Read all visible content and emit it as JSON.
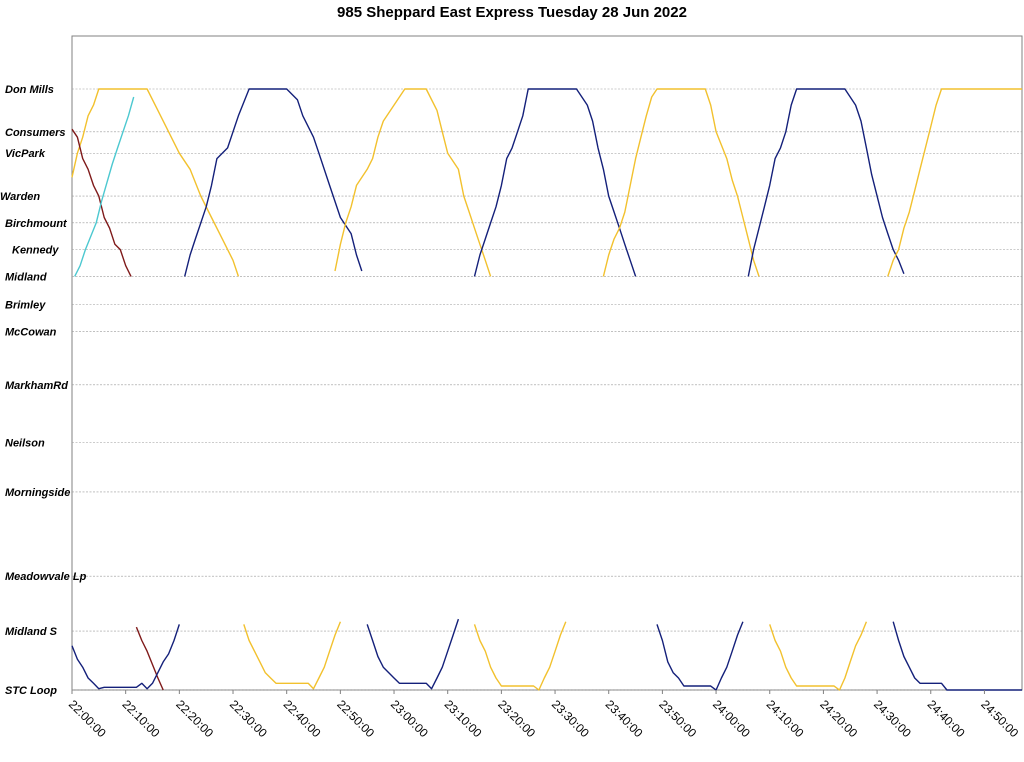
{
  "chart_data": {
    "type": "line",
    "title": "985 Sheppard East Express Tuesday 28 Jun 2022",
    "xlabel": "",
    "ylabel": "",
    "x_range": [
      "22:00:00",
      "24:57:00"
    ],
    "x_ticks": [
      "22:00:00",
      "22:10:00",
      "22:20:00",
      "22:30:00",
      "22:40:00",
      "22:50:00",
      "23:00:00",
      "23:10:00",
      "23:20:00",
      "23:30:00",
      "23:40:00",
      "23:50:00",
      "24:00:00",
      "24:10:00",
      "24:20:00",
      "24:30:00",
      "24:40:00",
      "24:50:00"
    ],
    "stops": [
      {
        "name": "Don Mills",
        "km": 0
      },
      {
        "name": "Consumers",
        "km": 1.6
      },
      {
        "name": "VicPark",
        "km": 2.4
      },
      {
        "name": "Warden",
        "km": 4.0
      },
      {
        "name": "Birchmount",
        "km": 5.0
      },
      {
        "name": "Kennedy",
        "km": 6.0
      },
      {
        "name": "Midland",
        "km": 7.0
      },
      {
        "name": "Brimley",
        "km": 8.05
      },
      {
        "name": "McCowan",
        "km": 9.05
      },
      {
        "name": "MarkhamRd",
        "km": 11.05
      },
      {
        "name": "Neilson",
        "km": 13.2
      },
      {
        "name": "Morningside",
        "km": 15.05
      },
      {
        "name": "Meadowvale Lp",
        "km": 18.2
      },
      {
        "name": "Midland S",
        "km": 20.25
      },
      {
        "name": "STC Loop",
        "km": 22.45
      }
    ],
    "grid": "horizontal dotted at each stop",
    "legend": "none",
    "series_colors": {
      "navy": "#14207a",
      "gold": "#f2c12e",
      "maroon": "#7f1a1a",
      "cyan": "#4cc8d0"
    },
    "series": [
      {
        "color": "#f2c12e",
        "points": [
          [
            "22:00:00",
            3.3
          ],
          [
            "22:01:00",
            2.4
          ],
          [
            "22:02:00",
            1.8
          ],
          [
            "22:03:00",
            1.0
          ],
          [
            "22:04:00",
            0.6
          ],
          [
            "22:05:00",
            0.0
          ],
          [
            "22:14:00",
            0.0
          ],
          [
            "22:16:00",
            0.8
          ],
          [
            "22:18:00",
            1.6
          ],
          [
            "22:20:00",
            2.4
          ],
          [
            "22:22:00",
            3.0
          ],
          [
            "22:24:00",
            4.0
          ],
          [
            "22:26:00",
            4.8
          ],
          [
            "22:28:00",
            5.6
          ],
          [
            "22:30:00",
            6.4
          ],
          [
            "22:31:00",
            7.0
          ]
        ]
      },
      {
        "color": "#7f1a1a",
        "points": [
          [
            "22:00:00",
            1.5
          ],
          [
            "22:01:00",
            1.8
          ],
          [
            "22:02:00",
            2.6
          ],
          [
            "22:03:00",
            3.0
          ],
          [
            "22:04:00",
            3.6
          ],
          [
            "22:05:00",
            4.0
          ],
          [
            "22:06:00",
            4.8
          ],
          [
            "22:07:00",
            5.2
          ],
          [
            "22:08:00",
            5.8
          ],
          [
            "22:09:00",
            6.0
          ],
          [
            "22:10:00",
            6.6
          ],
          [
            "22:11:00",
            7.0
          ]
        ]
      },
      {
        "color": "#4cc8d0",
        "points": [
          [
            "22:00:30",
            7.0
          ],
          [
            "22:01:30",
            6.6
          ],
          [
            "22:02:30",
            6.0
          ],
          [
            "22:03:30",
            5.5
          ],
          [
            "22:04:30",
            5.0
          ],
          [
            "22:05:30",
            4.2
          ],
          [
            "22:06:30",
            3.5
          ],
          [
            "22:07:30",
            2.8
          ],
          [
            "22:08:30",
            2.2
          ],
          [
            "22:09:30",
            1.6
          ],
          [
            "22:10:30",
            1.0
          ],
          [
            "22:11:30",
            0.3
          ]
        ]
      },
      {
        "color": "#7f1a1a",
        "points": [
          [
            "22:12:00",
            20.1
          ],
          [
            "22:13:00",
            20.6
          ],
          [
            "22:14:00",
            21.0
          ],
          [
            "22:15:00",
            21.5
          ],
          [
            "22:16:00",
            22.0
          ],
          [
            "22:17:00",
            22.45
          ]
        ]
      },
      {
        "color": "#14207a",
        "points": [
          [
            "22:00:00",
            20.8
          ],
          [
            "22:01:00",
            21.3
          ],
          [
            "22:02:00",
            21.6
          ],
          [
            "22:03:00",
            22.0
          ],
          [
            "22:04:00",
            22.2
          ],
          [
            "22:05:00",
            22.4
          ],
          [
            "22:06:00",
            22.35
          ],
          [
            "22:10:00",
            22.35
          ],
          [
            "22:12:00",
            22.35
          ],
          [
            "22:13:00",
            22.2
          ],
          [
            "22:14:00",
            22.4
          ],
          [
            "22:15:00",
            22.2
          ],
          [
            "22:16:00",
            21.8
          ],
          [
            "22:17:00",
            21.4
          ],
          [
            "22:18:00",
            21.1
          ],
          [
            "22:19:00",
            20.6
          ],
          [
            "22:20:00",
            20.0
          ]
        ]
      },
      {
        "color": "#14207a",
        "points": [
          [
            "22:21:00",
            7.0
          ],
          [
            "22:22:00",
            6.2
          ],
          [
            "22:23:00",
            5.6
          ],
          [
            "22:24:00",
            5.0
          ],
          [
            "22:25:00",
            4.4
          ],
          [
            "22:26:00",
            3.6
          ],
          [
            "22:27:00",
            2.6
          ],
          [
            "22:29:00",
            2.2
          ],
          [
            "22:30:00",
            1.6
          ],
          [
            "22:31:00",
            1.0
          ],
          [
            "22:33:00",
            0.0
          ],
          [
            "22:40:00",
            0.0
          ],
          [
            "22:42:00",
            0.4
          ],
          [
            "22:43:00",
            1.0
          ],
          [
            "22:45:00",
            1.8
          ],
          [
            "22:46:00",
            2.4
          ],
          [
            "22:48:00",
            3.6
          ],
          [
            "22:50:00",
            4.8
          ],
          [
            "22:52:00",
            5.4
          ],
          [
            "22:53:00",
            6.2
          ],
          [
            "22:54:00",
            6.8
          ]
        ]
      },
      {
        "color": "#f2c12e",
        "points": [
          [
            "22:32:00",
            20.0
          ],
          [
            "22:33:00",
            20.6
          ],
          [
            "22:35:00",
            21.4
          ],
          [
            "22:36:00",
            21.8
          ],
          [
            "22:37:00",
            22.0
          ],
          [
            "22:38:00",
            22.2
          ],
          [
            "22:44:00",
            22.2
          ],
          [
            "22:45:00",
            22.4
          ],
          [
            "22:46:00",
            22.0
          ],
          [
            "22:47:00",
            21.6
          ],
          [
            "22:48:00",
            21.0
          ],
          [
            "22:49:00",
            20.4
          ],
          [
            "22:50:00",
            19.9
          ]
        ]
      },
      {
        "color": "#f2c12e",
        "points": [
          [
            "22:49:00",
            6.8
          ],
          [
            "22:50:00",
            5.8
          ],
          [
            "22:51:00",
            5.0
          ],
          [
            "22:52:00",
            4.4
          ],
          [
            "22:53:00",
            3.6
          ],
          [
            "22:55:00",
            3.0
          ],
          [
            "22:56:00",
            2.6
          ],
          [
            "22:57:00",
            1.8
          ],
          [
            "22:58:00",
            1.2
          ],
          [
            "23:00:00",
            0.6
          ],
          [
            "23:02:00",
            0.0
          ],
          [
            "23:06:00",
            0.0
          ],
          [
            "23:08:00",
            0.8
          ],
          [
            "23:09:00",
            1.6
          ],
          [
            "23:10:00",
            2.4
          ],
          [
            "23:12:00",
            3.0
          ],
          [
            "23:13:00",
            4.0
          ],
          [
            "23:14:00",
            4.6
          ],
          [
            "23:15:00",
            5.2
          ],
          [
            "23:16:00",
            5.8
          ],
          [
            "23:17:00",
            6.4
          ],
          [
            "23:18:00",
            7.0
          ]
        ]
      },
      {
        "color": "#14207a",
        "points": [
          [
            "22:55:00",
            20.0
          ],
          [
            "22:56:00",
            20.6
          ],
          [
            "22:57:00",
            21.2
          ],
          [
            "22:58:00",
            21.6
          ],
          [
            "23:00:00",
            22.0
          ],
          [
            "23:01:00",
            22.2
          ],
          [
            "23:06:00",
            22.2
          ],
          [
            "23:07:00",
            22.4
          ],
          [
            "23:08:00",
            22.0
          ],
          [
            "23:09:00",
            21.6
          ],
          [
            "23:10:00",
            21.0
          ],
          [
            "23:11:00",
            20.4
          ],
          [
            "23:12:00",
            19.8
          ]
        ]
      },
      {
        "color": "#14207a",
        "points": [
          [
            "23:15:00",
            7.0
          ],
          [
            "23:16:00",
            6.2
          ],
          [
            "23:17:00",
            5.6
          ],
          [
            "23:18:00",
            5.0
          ],
          [
            "23:19:00",
            4.4
          ],
          [
            "23:20:00",
            3.6
          ],
          [
            "23:21:00",
            2.6
          ],
          [
            "23:22:00",
            2.2
          ],
          [
            "23:23:00",
            1.6
          ],
          [
            "23:24:00",
            1.0
          ],
          [
            "23:25:00",
            0.0
          ],
          [
            "23:34:00",
            0.0
          ],
          [
            "23:36:00",
            0.6
          ],
          [
            "23:37:00",
            1.2
          ],
          [
            "23:38:00",
            2.2
          ],
          [
            "23:39:00",
            3.0
          ],
          [
            "23:40:00",
            4.0
          ],
          [
            "23:41:00",
            4.6
          ],
          [
            "23:42:00",
            5.2
          ],
          [
            "23:43:00",
            5.8
          ],
          [
            "23:44:00",
            6.4
          ],
          [
            "23:45:00",
            7.0
          ]
        ]
      },
      {
        "color": "#f2c12e",
        "points": [
          [
            "23:15:00",
            20.0
          ],
          [
            "23:16:00",
            20.6
          ],
          [
            "23:17:00",
            21.0
          ],
          [
            "23:18:00",
            21.6
          ],
          [
            "23:19:00",
            22.0
          ],
          [
            "23:20:00",
            22.3
          ],
          [
            "23:26:00",
            22.3
          ],
          [
            "23:27:00",
            22.45
          ],
          [
            "23:28:00",
            22.0
          ],
          [
            "23:29:00",
            21.6
          ],
          [
            "23:30:00",
            21.0
          ],
          [
            "23:31:00",
            20.4
          ],
          [
            "23:32:00",
            19.9
          ]
        ]
      },
      {
        "color": "#f2c12e",
        "points": [
          [
            "23:39:00",
            7.0
          ],
          [
            "23:40:00",
            6.2
          ],
          [
            "23:41:00",
            5.6
          ],
          [
            "23:42:00",
            5.2
          ],
          [
            "23:43:00",
            4.6
          ],
          [
            "23:44:00",
            3.6
          ],
          [
            "23:45:00",
            2.6
          ],
          [
            "23:46:00",
            1.8
          ],
          [
            "23:47:00",
            1.0
          ],
          [
            "23:48:00",
            0.3
          ],
          [
            "23:49:00",
            0.0
          ],
          [
            "23:58:00",
            0.0
          ],
          [
            "23:59:00",
            0.6
          ],
          [
            "24:00:00",
            1.6
          ],
          [
            "24:02:00",
            2.6
          ],
          [
            "24:03:00",
            3.4
          ],
          [
            "24:04:00",
            4.0
          ],
          [
            "24:05:00",
            4.8
          ],
          [
            "24:06:00",
            5.6
          ],
          [
            "24:07:00",
            6.4
          ],
          [
            "24:08:00",
            7.0
          ]
        ]
      },
      {
        "color": "#14207a",
        "points": [
          [
            "23:49:00",
            20.0
          ],
          [
            "23:50:00",
            20.6
          ],
          [
            "23:51:00",
            21.4
          ],
          [
            "23:52:00",
            21.8
          ],
          [
            "23:53:00",
            22.0
          ],
          [
            "23:54:00",
            22.3
          ],
          [
            "23:59:00",
            22.3
          ],
          [
            "24:00:00",
            22.45
          ],
          [
            "24:01:00",
            22.0
          ],
          [
            "24:02:00",
            21.6
          ],
          [
            "24:03:00",
            21.0
          ],
          [
            "24:04:00",
            20.4
          ],
          [
            "24:05:00",
            19.9
          ]
        ]
      },
      {
        "color": "#14207a",
        "points": [
          [
            "24:06:00",
            7.0
          ],
          [
            "24:07:00",
            6.0
          ],
          [
            "24:08:00",
            5.2
          ],
          [
            "24:09:00",
            4.4
          ],
          [
            "24:10:00",
            3.6
          ],
          [
            "24:11:00",
            2.6
          ],
          [
            "24:12:00",
            2.2
          ],
          [
            "24:13:00",
            1.6
          ],
          [
            "24:14:00",
            0.6
          ],
          [
            "24:15:00",
            0.0
          ],
          [
            "24:24:00",
            0.0
          ],
          [
            "24:26:00",
            0.6
          ],
          [
            "24:27:00",
            1.2
          ],
          [
            "24:28:00",
            2.2
          ],
          [
            "24:29:00",
            3.2
          ],
          [
            "24:30:00",
            4.0
          ],
          [
            "24:31:00",
            4.8
          ],
          [
            "24:32:00",
            5.4
          ],
          [
            "24:33:00",
            6.0
          ],
          [
            "24:34:00",
            6.4
          ],
          [
            "24:35:00",
            6.9
          ]
        ]
      },
      {
        "color": "#f2c12e",
        "points": [
          [
            "24:10:00",
            20.0
          ],
          [
            "24:11:00",
            20.6
          ],
          [
            "24:12:00",
            21.0
          ],
          [
            "24:13:00",
            21.6
          ],
          [
            "24:14:00",
            22.0
          ],
          [
            "24:15:00",
            22.3
          ],
          [
            "24:22:00",
            22.3
          ],
          [
            "24:23:00",
            22.45
          ],
          [
            "24:24:00",
            22.0
          ],
          [
            "24:25:00",
            21.4
          ],
          [
            "24:26:00",
            20.8
          ],
          [
            "24:27:00",
            20.4
          ],
          [
            "24:28:00",
            19.9
          ]
        ]
      },
      {
        "color": "#f2c12e",
        "points": [
          [
            "24:32:00",
            7.0
          ],
          [
            "24:33:00",
            6.4
          ],
          [
            "24:34:00",
            6.0
          ],
          [
            "24:35:00",
            5.2
          ],
          [
            "24:36:00",
            4.6
          ],
          [
            "24:37:00",
            3.8
          ],
          [
            "24:38:00",
            3.0
          ],
          [
            "24:39:00",
            2.2
          ],
          [
            "24:40:00",
            1.4
          ],
          [
            "24:41:00",
            0.6
          ],
          [
            "24:42:00",
            0.0
          ],
          [
            "24:56:00",
            0.0
          ],
          [
            "24:57:00",
            0.0
          ]
        ]
      },
      {
        "color": "#14207a",
        "points": [
          [
            "24:33:00",
            19.9
          ],
          [
            "24:34:00",
            20.6
          ],
          [
            "24:35:00",
            21.2
          ],
          [
            "24:36:00",
            21.6
          ],
          [
            "24:37:00",
            22.0
          ],
          [
            "24:38:00",
            22.2
          ],
          [
            "24:42:00",
            22.2
          ],
          [
            "24:43:00",
            22.45
          ],
          [
            "24:57:00",
            22.45
          ]
        ]
      }
    ]
  }
}
